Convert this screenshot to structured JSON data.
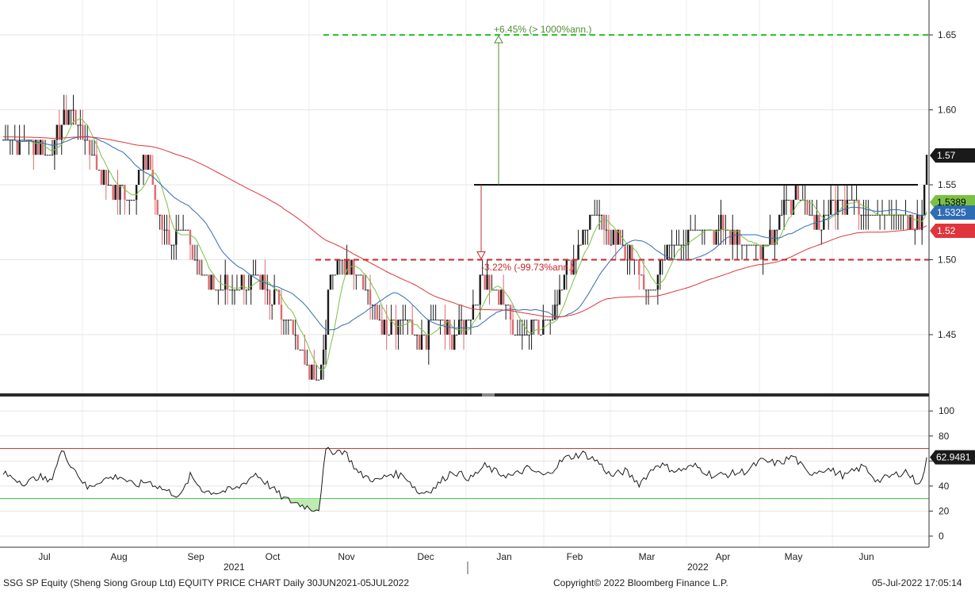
{
  "footer": {
    "left": "SSG SP Equity (Sheng Siong Group Ltd) EQUITY PRICE CHART  Daily 30JUN2021-05JUL2022",
    "center": "Copyright© 2022 Bloomberg Finance L.P.",
    "right": "05-Jul-2022 17:05:14"
  },
  "years": [
    "2021",
    "2022"
  ],
  "chart_data": [
    {
      "type": "candlestick",
      "x_tick_labels": [
        "Jul",
        "Aug",
        "Sep",
        "Oct",
        "Nov",
        "Dec",
        "Jan",
        "Feb",
        "Mar",
        "Apr",
        "May",
        "Jun"
      ],
      "y_ticks": [
        1.45,
        1.5,
        1.55,
        1.6,
        1.65
      ],
      "ylim": [
        1.41,
        1.68
      ],
      "grid": true,
      "anchors": [
        [
          0,
          1.58
        ],
        [
          10,
          1.58
        ],
        [
          20,
          1.57
        ],
        [
          25,
          1.59
        ],
        [
          30,
          1.6
        ],
        [
          35,
          1.58
        ],
        [
          45,
          1.55
        ],
        [
          55,
          1.54
        ],
        [
          62,
          1.57
        ],
        [
          66,
          1.53
        ],
        [
          72,
          1.51
        ],
        [
          78,
          1.52
        ],
        [
          85,
          1.49
        ],
        [
          95,
          1.48
        ],
        [
          100,
          1.48
        ],
        [
          108,
          1.49
        ],
        [
          114,
          1.48
        ],
        [
          122,
          1.46
        ],
        [
          128,
          1.44
        ],
        [
          134,
          1.42
        ],
        [
          136,
          1.43
        ],
        [
          140,
          1.49
        ],
        [
          150,
          1.5
        ],
        [
          158,
          1.47
        ],
        [
          164,
          1.45
        ],
        [
          172,
          1.46
        ],
        [
          178,
          1.44
        ],
        [
          184,
          1.46
        ],
        [
          192,
          1.45
        ],
        [
          198,
          1.46
        ],
        [
          206,
          1.49
        ],
        [
          214,
          1.47
        ],
        [
          220,
          1.45
        ],
        [
          228,
          1.46
        ],
        [
          234,
          1.46
        ],
        [
          240,
          1.49
        ],
        [
          246,
          1.51
        ],
        [
          252,
          1.53
        ],
        [
          258,
          1.52
        ],
        [
          264,
          1.51
        ],
        [
          270,
          1.5
        ],
        [
          276,
          1.47
        ],
        [
          282,
          1.5
        ],
        [
          290,
          1.51
        ],
        [
          296,
          1.52
        ],
        [
          304,
          1.52
        ],
        [
          312,
          1.52
        ],
        [
          318,
          1.51
        ],
        [
          324,
          1.51
        ],
        [
          330,
          1.52
        ],
        [
          336,
          1.54
        ],
        [
          342,
          1.54
        ],
        [
          350,
          1.52
        ],
        [
          356,
          1.54
        ],
        [
          362,
          1.54
        ],
        [
          370,
          1.53
        ],
        [
          376,
          1.53
        ],
        [
          382,
          1.53
        ],
        [
          386,
          1.53
        ],
        [
          390,
          1.52
        ],
        [
          393,
          1.53
        ],
        [
          395,
          1.57
        ]
      ],
      "rsi_anchors": [
        [
          0,
          50
        ],
        [
          10,
          42
        ],
        [
          15,
          48
        ],
        [
          20,
          43
        ],
        [
          25,
          68
        ],
        [
          30,
          55
        ],
        [
          36,
          38
        ],
        [
          42,
          45
        ],
        [
          50,
          48
        ],
        [
          56,
          40
        ],
        [
          62,
          44
        ],
        [
          70,
          36
        ],
        [
          76,
          32
        ],
        [
          80,
          48
        ],
        [
          86,
          36
        ],
        [
          92,
          35
        ],
        [
          100,
          38
        ],
        [
          108,
          50
        ],
        [
          114,
          40
        ],
        [
          120,
          30
        ],
        [
          126,
          26
        ],
        [
          132,
          22
        ],
        [
          135,
          22
        ],
        [
          138,
          68
        ],
        [
          146,
          68
        ],
        [
          152,
          50
        ],
        [
          160,
          44
        ],
        [
          166,
          50
        ],
        [
          172,
          48
        ],
        [
          178,
          34
        ],
        [
          184,
          38
        ],
        [
          192,
          52
        ],
        [
          200,
          46
        ],
        [
          206,
          56
        ],
        [
          212,
          50
        ],
        [
          218,
          48
        ],
        [
          224,
          54
        ],
        [
          232,
          48
        ],
        [
          240,
          62
        ],
        [
          248,
          66
        ],
        [
          254,
          60
        ],
        [
          260,
          48
        ],
        [
          266,
          52
        ],
        [
          272,
          42
        ],
        [
          280,
          58
        ],
        [
          288,
          52
        ],
        [
          296,
          56
        ],
        [
          304,
          48
        ],
        [
          312,
          50
        ],
        [
          318,
          52
        ],
        [
          324,
          60
        ],
        [
          332,
          58
        ],
        [
          338,
          64
        ],
        [
          344,
          50
        ],
        [
          352,
          54
        ],
        [
          360,
          48
        ],
        [
          368,
          56
        ],
        [
          374,
          44
        ],
        [
          380,
          48
        ],
        [
          386,
          52
        ],
        [
          390,
          44
        ],
        [
          393,
          44
        ],
        [
          395,
          62.9481
        ]
      ],
      "levels": {
        "target_high": 1.65,
        "resistance": 1.55,
        "support": 1.5
      },
      "moving_averages": [
        {
          "name": "fast",
          "color": "#7ac143",
          "last": 1.5389
        },
        {
          "name": "mid",
          "color": "#2e6db4",
          "last": 1.5325
        },
        {
          "name": "slow",
          "color": "#e0353c",
          "last": 1.52
        }
      ],
      "last_price": 1.57,
      "annotations": {
        "upside": "+6.45% (> 1000%ann.)",
        "downside": "-3.22% (-99.73%ann.)"
      },
      "price_badges": [
        {
          "value": "1.57",
          "bg": "#1a1a1a",
          "fg": "#ffffff"
        },
        {
          "value": "1.5389",
          "bg": "#7ac143",
          "fg": "#000000"
        },
        {
          "value": "1.5325",
          "bg": "#2e6db4",
          "fg": "#ffffff"
        },
        {
          "value": "1.52",
          "bg": "#e0353c",
          "fg": "#ffffff"
        }
      ],
      "up_color": "#1a1a1a",
      "down_color": "#e06a6f"
    },
    {
      "type": "line",
      "name": "RSI",
      "y_ticks": [
        0,
        20,
        40,
        60,
        80,
        100
      ],
      "ylim": [
        -8,
        108
      ],
      "overbought": 70,
      "oversold": 30,
      "last": "62.9481",
      "line_color": "#1a1a1a",
      "overbought_color": "#d23a3a",
      "oversold_color": "#3dbd3d"
    }
  ]
}
